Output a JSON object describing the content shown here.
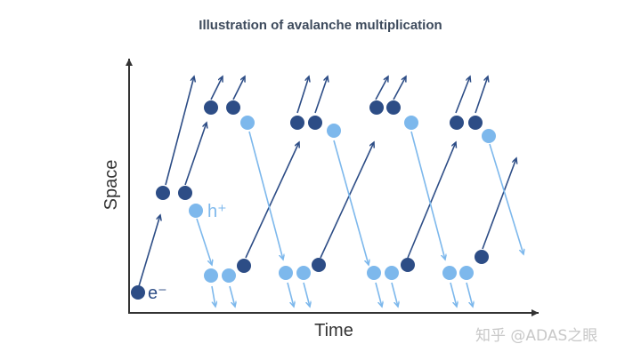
{
  "title": "Illustration of avalanche multiplication",
  "axes": {
    "x_label": "Time",
    "y_label": "Space"
  },
  "carriers": {
    "electron_label": "e⁻",
    "hole_label": "h⁺"
  },
  "colors": {
    "electron": "#2d4d86",
    "hole": "#7db8ec",
    "axis": "#333333"
  },
  "watermark": "知乎 @ADAS之眼"
}
